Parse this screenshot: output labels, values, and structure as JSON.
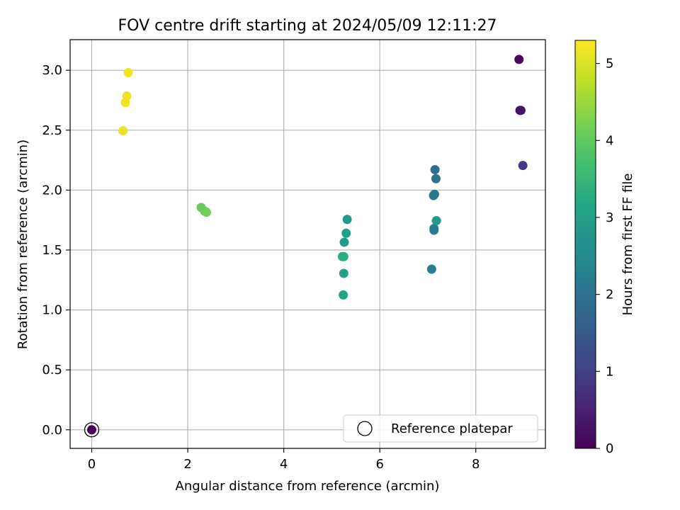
{
  "chart_data": {
    "type": "scatter",
    "title": "FOV centre drift starting at 2024/05/09 12:11:27",
    "xlabel": "Angular distance from reference (arcmin)",
    "ylabel": "Rotation from reference (arcmin)",
    "xlim": [
      -0.45,
      9.45
    ],
    "ylim": [
      -0.155,
      3.255
    ],
    "xticks": [
      0,
      2,
      4,
      6,
      8
    ],
    "xtick_labels": [
      "0",
      "2",
      "4",
      "6",
      "8"
    ],
    "yticks": [
      0.0,
      0.5,
      1.0,
      1.5,
      2.0,
      2.5,
      3.0
    ],
    "ytick_labels": [
      "0.0",
      "0.5",
      "1.0",
      "1.5",
      "2.0",
      "2.5",
      "3.0"
    ],
    "grid": true,
    "legend": {
      "placement": "bottom-right",
      "entries": [
        "Reference platepar"
      ]
    },
    "colorbar": {
      "label": "Hours from first FF file",
      "colormap": "viridis",
      "range": [
        0,
        5.3
      ],
      "ticks": [
        0,
        1,
        2,
        3,
        4,
        5
      ],
      "tick_labels": [
        "0",
        "1",
        "2",
        "3",
        "4",
        "5"
      ]
    },
    "reference_point": {
      "x": 0.0,
      "y": 0.0,
      "hours": 0.0
    },
    "points": [
      {
        "x": 8.9,
        "y": 3.09,
        "hours": 0.1
      },
      {
        "x": 8.92,
        "y": 2.665,
        "hours": 0.2
      },
      {
        "x": 8.94,
        "y": 2.665,
        "hours": 0.3
      },
      {
        "x": 8.98,
        "y": 2.205,
        "hours": 0.9
      },
      {
        "x": 7.15,
        "y": 2.17,
        "hours": 1.9
      },
      {
        "x": 7.17,
        "y": 2.095,
        "hours": 2.0
      },
      {
        "x": 7.14,
        "y": 1.965,
        "hours": 2.05
      },
      {
        "x": 7.12,
        "y": 1.955,
        "hours": 2.1
      },
      {
        "x": 7.13,
        "y": 1.68,
        "hours": 2.2
      },
      {
        "x": 7.13,
        "y": 1.665,
        "hours": 2.2
      },
      {
        "x": 7.08,
        "y": 1.34,
        "hours": 2.3
      },
      {
        "x": 7.18,
        "y": 1.745,
        "hours": 2.9
      },
      {
        "x": 5.32,
        "y": 1.755,
        "hours": 2.8
      },
      {
        "x": 5.3,
        "y": 1.64,
        "hours": 3.0
      },
      {
        "x": 5.26,
        "y": 1.565,
        "hours": 2.9
      },
      {
        "x": 5.22,
        "y": 1.445,
        "hours": 3.4
      },
      {
        "x": 5.25,
        "y": 1.445,
        "hours": 3.3
      },
      {
        "x": 5.25,
        "y": 1.305,
        "hours": 3.0
      },
      {
        "x": 5.24,
        "y": 1.125,
        "hours": 3.1
      },
      {
        "x": 2.28,
        "y": 1.855,
        "hours": 4.05
      },
      {
        "x": 2.35,
        "y": 1.825,
        "hours": 4.1
      },
      {
        "x": 2.39,
        "y": 1.815,
        "hours": 4.15
      },
      {
        "x": 0.65,
        "y": 2.495,
        "hours": 5.1
      },
      {
        "x": 0.7,
        "y": 2.73,
        "hours": 5.15
      },
      {
        "x": 0.73,
        "y": 2.785,
        "hours": 5.18
      },
      {
        "x": 0.76,
        "y": 2.98,
        "hours": 5.2
      }
    ]
  }
}
